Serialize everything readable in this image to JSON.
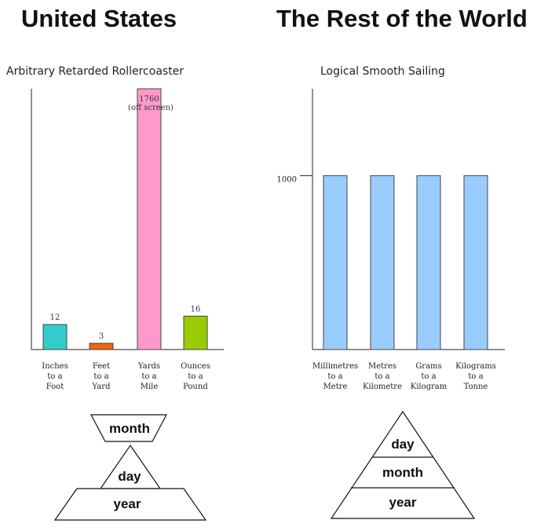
{
  "headings": {
    "left": "United States",
    "right": "The Rest of the World"
  },
  "chart_data": [
    {
      "type": "bar",
      "title": "Arbitrary Retarded Rollercoaster",
      "categories": [
        [
          "Inches",
          "to a",
          "Foot"
        ],
        [
          "Feet",
          "to a",
          "Yard"
        ],
        [
          "Yards",
          "to a",
          "Mile"
        ],
        [
          "Ounces",
          "to a",
          "Pound"
        ]
      ],
      "values": [
        12,
        3,
        1760,
        16
      ],
      "value_labels": [
        "12",
        "3",
        "1760",
        "16"
      ],
      "annotation": "(off screen)",
      "colors": [
        "#33cccc",
        "#ee6611",
        "#ff99cc",
        "#99cc00"
      ],
      "ylim": [
        0,
        125
      ],
      "yticks": []
    },
    {
      "type": "bar",
      "title": "Logical Smooth Sailing",
      "categories": [
        [
          "Millimetres",
          "to a",
          "Metre"
        ],
        [
          "Metres",
          "to a",
          "Kilometre"
        ],
        [
          "Grams",
          "to a",
          "Kilogram"
        ],
        [
          "Kilograms",
          "to a",
          "Tonne"
        ]
      ],
      "values": [
        1000,
        1000,
        1000,
        1000
      ],
      "value_labels": [],
      "annotation": "",
      "colors": [
        "#99ccff",
        "#99ccff",
        "#99ccff",
        "#99ccff"
      ],
      "ylim": [
        0,
        1500
      ],
      "yticks": [
        1000
      ]
    }
  ],
  "pyramids": {
    "left": [
      "month",
      "day",
      "year"
    ],
    "right": [
      "day",
      "month",
      "year"
    ]
  }
}
